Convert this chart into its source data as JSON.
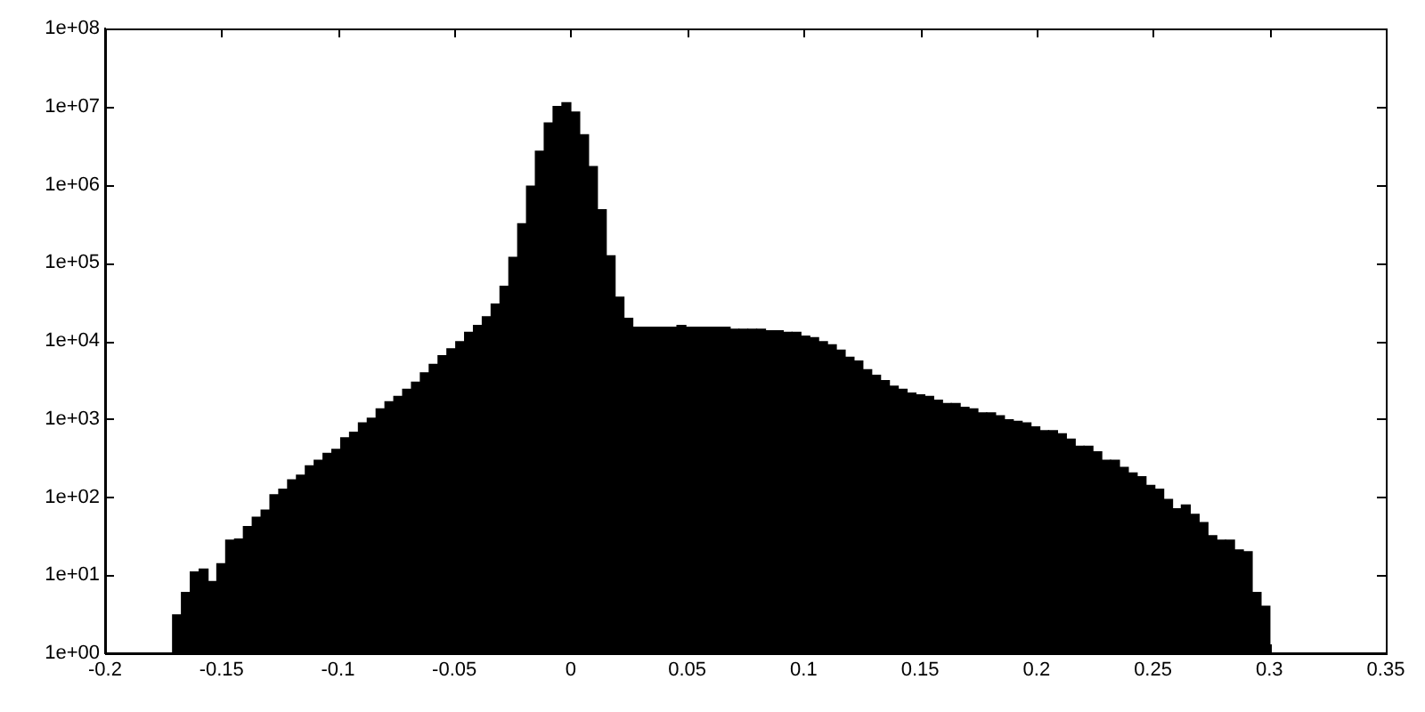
{
  "chart_data": {
    "type": "histogram",
    "color": "#000000",
    "log": "y",
    "bins": [
      -0.171,
      -0.1672,
      -0.1634,
      -0.1596,
      -0.1558,
      -0.152,
      -0.1482,
      -0.1444,
      -0.1406,
      -0.1368,
      -0.133,
      -0.1292,
      -0.1254,
      -0.1216,
      -0.1178,
      -0.114,
      -0.1102,
      -0.1064,
      -0.1026,
      -0.0988,
      -0.095,
      -0.0912,
      -0.0874,
      -0.0836,
      -0.0798,
      -0.076,
      -0.0722,
      -0.0684,
      -0.0646,
      -0.0608,
      -0.057,
      -0.0532,
      -0.0494,
      -0.0456,
      -0.0418,
      -0.038,
      -0.0342,
      -0.0304,
      -0.0266,
      -0.0228,
      -0.019,
      -0.0152,
      -0.0114,
      -0.0076,
      -0.0038,
      0,
      0.0038,
      0.0076,
      0.0114,
      0.0152,
      0.019,
      0.0228,
      0.0266,
      0.0304,
      0.0342,
      0.038,
      0.0418,
      0.0456,
      0.0494,
      0.0532,
      0.057,
      0.0608,
      0.0646,
      0.0684,
      0.0722,
      0.076,
      0.0798,
      0.0836,
      0.0874,
      0.0912,
      0.095,
      0.0988,
      0.1026,
      0.1064,
      0.1102,
      0.114,
      0.1178,
      0.1216,
      0.1254,
      0.1292,
      0.133,
      0.1368,
      0.1406,
      0.1444,
      0.1482,
      0.152,
      0.1558,
      0.1596,
      0.1634,
      0.1672,
      0.171,
      0.1748,
      0.1786,
      0.1824,
      0.1862,
      0.19,
      0.1938,
      0.1976,
      0.2014,
      0.2052,
      0.209,
      0.2128,
      0.2166,
      0.2204,
      0.2242,
      0.228,
      0.2318,
      0.2356,
      0.2394,
      0.2432,
      0.247,
      0.2508,
      0.2546,
      0.2584,
      0.2622,
      0.266,
      0.2698,
      0.2736,
      0.2774,
      0.2812,
      0.285,
      0.2888,
      0.2926,
      0.2964,
      0.3002
    ],
    "values": [
      3.1,
      6,
      11,
      12,
      8.3,
      14,
      28,
      29,
      42,
      55,
      68,
      107,
      126,
      166,
      191,
      251,
      295,
      363,
      407,
      575,
      676,
      891,
      1020,
      1350,
      1660,
      1950,
      2400,
      2950,
      3890,
      5010,
      6460,
      7940,
      9770,
      12900,
      15800,
      20400,
      29500,
      50100,
      117000,
      316000,
      955000,
      2690000,
      6170000,
      10000000,
      11200000,
      8510000,
      4370000,
      1700000,
      479000,
      123000,
      36300,
      19500,
      15000,
      15000,
      15000,
      15000,
      15000,
      15800,
      15000,
      15000,
      15000,
      15000,
      15000,
      14100,
      14100,
      14100,
      14100,
      13500,
      13500,
      12900,
      12900,
      11500,
      11000,
      9770,
      8910,
      7590,
      6170,
      5500,
      4270,
      3630,
      3090,
      2630,
      2400,
      2140,
      2040,
      1950,
      1740,
      1580,
      1580,
      1410,
      1350,
      1200,
      1200,
      1100,
      977,
      933,
      891,
      794,
      708,
      708,
      646,
      550,
      447,
      447,
      380,
      295,
      295,
      240,
      204,
      182,
      141,
      126,
      93,
      71,
      79,
      60,
      47,
      32,
      28,
      28,
      21,
      20,
      6,
      4
    ],
    "xlim": [
      -0.2,
      0.35
    ],
    "xticks": [
      -0.2,
      -0.15,
      -0.1,
      -0.05,
      0,
      0.05,
      0.1,
      0.15,
      0.2,
      0.25,
      0.3,
      0.35
    ],
    "ylim": [
      1,
      100000000
    ],
    "yticks": [
      {
        "value": 1,
        "label": "1e+00"
      },
      {
        "value": 10,
        "label": "1e+01"
      },
      {
        "value": 100,
        "label": "1e+02"
      },
      {
        "value": 1000,
        "label": "1e+03"
      },
      {
        "value": 10000,
        "label": "1e+04"
      },
      {
        "value": 100000,
        "label": "1e+05"
      },
      {
        "value": 1000000,
        "label": "1e+06"
      },
      {
        "value": 10000000,
        "label": "1e+07"
      },
      {
        "value": 100000000,
        "label": "1e+08"
      }
    ]
  }
}
